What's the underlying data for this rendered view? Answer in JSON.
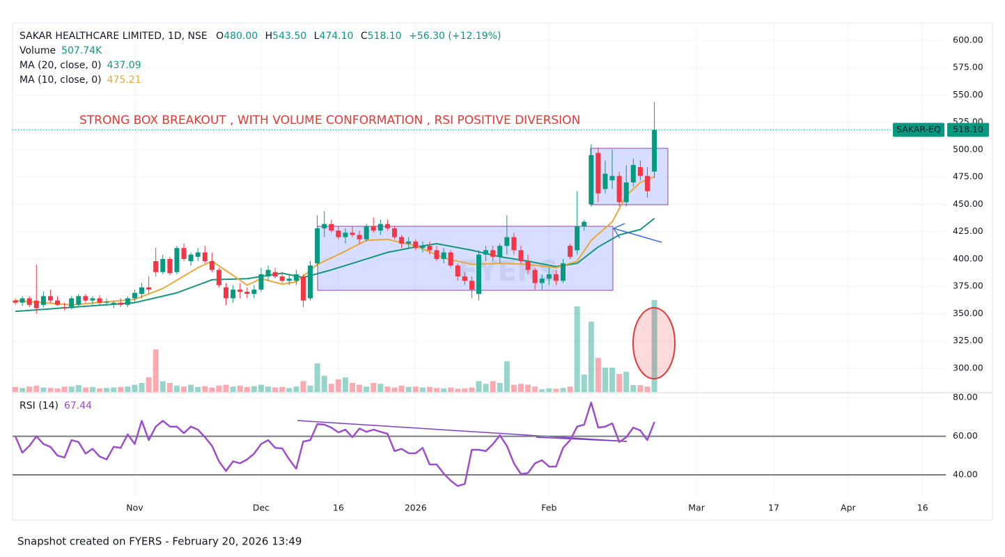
{
  "chart_data": [
    {
      "type": "candlestick",
      "title": "SAKAR HEALTHCARE LIMITED, 1D, NSE",
      "readout": [
        "O",
        "480.00",
        "H",
        "543.50",
        "L",
        "474.10",
        "C",
        "518.10",
        "+56.30 (+12.19%)"
      ],
      "annotation": "STRONG BOX BREAKOUT , WITH VOLUME CONFORMATION , RSI POSITIVE DIVERSION",
      "watermark": "FYERS",
      "price_tag": {
        "symbol": "SAKAR-EQ",
        "price": "518.10"
      },
      "up_color": "#089981",
      "down_color": "#f23645",
      "xlim": [
        -0.4,
        132.5
      ],
      "xticks": [
        {
          "value": 17,
          "label": "Nov"
        },
        {
          "value": 35,
          "label": "Dec"
        },
        {
          "value": 46,
          "label": "16"
        },
        {
          "value": 57,
          "label": "2026"
        },
        {
          "value": 76,
          "label": "Feb"
        },
        {
          "value": 97,
          "label": "Mar"
        },
        {
          "value": 108,
          "label": "17"
        },
        {
          "value": 118.6,
          "label": "Apr"
        },
        {
          "value": 129.2,
          "label": "16"
        }
      ],
      "ylim": [
        278.3,
        615.9
      ],
      "yticks": [
        {
          "value": 300,
          "label": "300.00"
        },
        {
          "value": 325,
          "label": "325.00"
        },
        {
          "value": 350,
          "label": "350.00"
        },
        {
          "value": 375,
          "label": "375.00"
        },
        {
          "value": 400,
          "label": "400.00"
        },
        {
          "value": 425,
          "label": "425.00"
        },
        {
          "value": 450,
          "label": "450.00"
        },
        {
          "value": 475,
          "label": "475.00"
        },
        {
          "value": 500,
          "label": "500.00"
        },
        {
          "value": 525,
          "label": "525.00"
        },
        {
          "value": 550,
          "label": "550.00"
        },
        {
          "value": 575,
          "label": "575.00"
        },
        {
          "value": 600,
          "label": "600.00"
        }
      ],
      "grid": true,
      "open": [
        362,
        360,
        364,
        362,
        358,
        366,
        362,
        356,
        355,
        358,
        366,
        362,
        364,
        360,
        358,
        360,
        358,
        364,
        368,
        374,
        398,
        388,
        400,
        388,
        410,
        398,
        402,
        406,
        398,
        390,
        374,
        364,
        372,
        370,
        368,
        372,
        384,
        388,
        384,
        380,
        380,
        384,
        364,
        396,
        428,
        432,
        426,
        420,
        424,
        422,
        418,
        430,
        426,
        432,
        428,
        420,
        414,
        416,
        410,
        412,
        408,
        400,
        406,
        394,
        384,
        380,
        368,
        404,
        408,
        402,
        412,
        420,
        408,
        398,
        390,
        378,
        382,
        386,
        380,
        412,
        408,
        430,
        450,
        497,
        464,
        472,
        476,
        452,
        470,
        484,
        476,
        480
      ],
      "high": [
        364,
        366,
        366,
        395,
        370,
        372,
        366,
        360,
        366,
        368,
        368,
        366,
        367,
        364,
        362,
        364,
        366,
        372,
        378,
        384,
        410,
        404,
        402,
        412,
        414,
        406,
        410,
        412,
        406,
        392,
        378,
        376,
        378,
        374,
        376,
        392,
        394,
        392,
        388,
        386,
        390,
        386,
        398,
        440,
        444,
        436,
        430,
        428,
        430,
        426,
        432,
        438,
        436,
        436,
        430,
        422,
        420,
        418,
        416,
        416,
        412,
        410,
        408,
        396,
        388,
        384,
        408,
        412,
        412,
        414,
        440,
        424,
        412,
        404,
        392,
        386,
        392,
        390,
        400,
        414,
        462,
        436,
        505,
        502,
        490,
        500,
        480,
        486,
        492,
        490,
        484,
        543.5
      ],
      "low": [
        358,
        357,
        356,
        350,
        356,
        360,
        357,
        353,
        354,
        356,
        360,
        358,
        358,
        357,
        355,
        356,
        356,
        360,
        364,
        368,
        384,
        386,
        385,
        386,
        398,
        394,
        398,
        396,
        388,
        374,
        358,
        360,
        364,
        364,
        364,
        370,
        380,
        382,
        378,
        376,
        376,
        356,
        362,
        394,
        420,
        424,
        418,
        414,
        420,
        414,
        416,
        424,
        422,
        426,
        418,
        410,
        410,
        408,
        406,
        404,
        398,
        396,
        392,
        380,
        376,
        364,
        362,
        398,
        398,
        396,
        404,
        404,
        396,
        386,
        372,
        372,
        376,
        376,
        378,
        400,
        404,
        426,
        448,
        452,
        460,
        464,
        448,
        448,
        466,
        472,
        456,
        474.1
      ],
      "close": [
        360,
        364,
        358,
        355,
        366,
        362,
        358,
        355,
        364,
        366,
        362,
        364,
        360,
        361,
        360,
        358,
        364,
        369,
        374,
        372,
        388,
        400,
        387,
        410,
        400,
        404,
        406,
        398,
        390,
        376,
        364,
        372,
        370,
        368,
        372,
        386,
        390,
        384,
        380,
        382,
        386,
        362,
        394,
        428,
        432,
        426,
        420,
        424,
        422,
        418,
        430,
        426,
        432,
        428,
        420,
        414,
        416,
        410,
        412,
        408,
        400,
        406,
        394,
        384,
        380,
        372,
        404,
        408,
        402,
        412,
        420,
        408,
        398,
        390,
        378,
        382,
        386,
        380,
        396,
        402,
        430,
        434,
        495,
        460,
        478,
        476,
        452,
        470,
        486,
        476,
        462,
        518.1
      ],
      "series": [
        {
          "name": "MA (20, close, 0)",
          "color": "#14967a",
          "x": [
            0,
            17,
            23,
            28,
            33,
            38,
            41,
            45,
            49,
            53,
            57,
            60,
            65,
            69,
            73,
            77,
            80,
            83,
            86,
            89,
            91
          ],
          "values": [
            352,
            360,
            369,
            381,
            382,
            387,
            383,
            390,
            398,
            406,
            411,
            414,
            408,
            402,
            398,
            393,
            396,
            411,
            422,
            427,
            437.09
          ]
        },
        {
          "name": "MA (10, close, 0)",
          "color": "#e8a838",
          "x": [
            0,
            8,
            17,
            21,
            26,
            28,
            31,
            33,
            35,
            38,
            40,
            43,
            46,
            50,
            53,
            57,
            61,
            65,
            69,
            73,
            77,
            80,
            82,
            85,
            87,
            89,
            91
          ],
          "values": [
            362,
            358,
            363,
            373,
            392,
            398,
            385,
            376,
            382,
            377,
            379,
            395,
            404,
            417,
            418,
            412,
            401,
            395,
            396,
            395,
            392,
            398,
            417,
            434,
            458,
            470,
            475.21
          ]
        }
      ]
    },
    {
      "type": "bar",
      "name": "Volume",
      "readout": "507.74K",
      "values": [
        28,
        22,
        30,
        35,
        25,
        22,
        20,
        30,
        30,
        38,
        25,
        28,
        20,
        22,
        25,
        28,
        30,
        40,
        50,
        81,
        235,
        60,
        50,
        35,
        30,
        40,
        28,
        32,
        25,
        35,
        40,
        30,
        35,
        28,
        32,
        40,
        30,
        25,
        28,
        22,
        30,
        60,
        35,
        158,
        90,
        45,
        70,
        80,
        50,
        40,
        30,
        50,
        45,
        30,
        25,
        35,
        28,
        30,
        25,
        28,
        22,
        20,
        25,
        18,
        20,
        25,
        60,
        45,
        60,
        50,
        170,
        40,
        45,
        40,
        30,
        15,
        20,
        18,
        22,
        30,
        473,
        96,
        389,
        188,
        135,
        135,
        100,
        112,
        38,
        38,
        30,
        507.74
      ]
    },
    {
      "type": "line",
      "name": "RSI (14)",
      "color": "#9c4dcc",
      "ylim": [
        29.2,
        82.2
      ],
      "yticks": [
        {
          "value": 40,
          "label": "40.00"
        },
        {
          "value": 60,
          "label": "60.00"
        },
        {
          "value": 80,
          "label": "80.00"
        }
      ],
      "levels": [
        40,
        60
      ],
      "values": [
        60,
        51.5,
        55,
        60,
        56,
        54.5,
        50,
        49,
        58,
        57,
        51,
        53.5,
        49.5,
        48,
        54.5,
        54,
        61,
        56,
        68,
        58,
        65,
        68,
        65,
        65,
        61.6,
        65,
        63.4,
        59.5,
        55,
        47,
        42,
        47,
        46,
        48,
        51,
        56,
        58,
        54,
        53.7,
        48,
        43.2,
        57.3,
        58,
        66.3,
        66,
        64.5,
        62,
        63.4,
        59.5,
        64,
        62.3,
        63.4,
        62.3,
        61.3,
        52.3,
        53.5,
        51.2,
        51.2,
        54,
        45.4,
        45.4,
        40.7,
        37,
        34.2,
        35.3,
        53,
        53,
        52.3,
        55.9,
        60.5,
        55,
        46,
        40.4,
        41,
        46,
        47.6,
        44.3,
        44.3,
        54,
        58,
        65,
        66,
        77.5,
        64.5,
        65,
        66.7,
        57,
        59.5,
        64.5,
        63,
        58,
        67.44
      ]
    }
  ],
  "footer": "Snapshot created on FYERS - February 20, 2026 13:49"
}
